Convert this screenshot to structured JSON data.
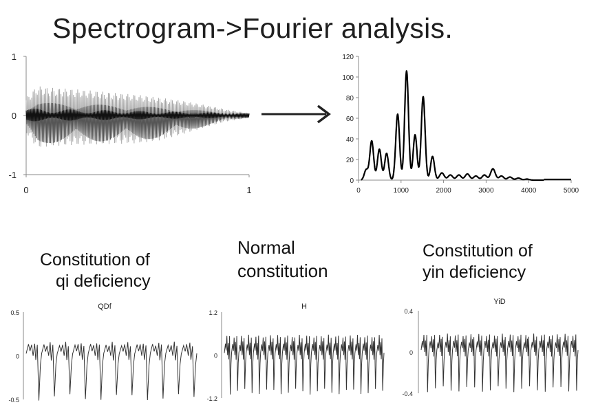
{
  "title": "Spectrogram->Fourier analysis.",
  "captions": {
    "qi_line1": "Constitution of",
    "qi_line2": "qi deficiency",
    "normal_line1": "Normal",
    "normal_line2": "constitution",
    "yin_line1": "Constitution of",
    "yin_line2": "yin deficiency"
  },
  "colors": {
    "line": "#000000",
    "light_wave": "#a6a6a6",
    "dark_wave": "#555555",
    "axis": "#888888"
  },
  "chart_data": [
    {
      "id": "waveform",
      "type": "area",
      "title": "",
      "x_ticks": [
        "0",
        "1"
      ],
      "y_ticks": [
        "1",
        "0",
        "-1"
      ],
      "xlim": [
        0,
        1
      ],
      "ylim": [
        -1,
        1
      ],
      "envelope": {
        "x": [
          0,
          0.05,
          0.1,
          0.2,
          0.3,
          0.4,
          0.5,
          0.6,
          0.7,
          0.8,
          0.9,
          1.0
        ],
        "upper": [
          0.3,
          0.5,
          0.47,
          0.45,
          0.42,
          0.38,
          0.35,
          0.3,
          0.25,
          0.18,
          0.1,
          0.04
        ],
        "lower": [
          -0.3,
          -0.55,
          -0.52,
          -0.5,
          -0.49,
          -0.48,
          -0.47,
          -0.42,
          -0.32,
          -0.2,
          -0.1,
          -0.04
        ]
      }
    },
    {
      "id": "spectrum",
      "type": "line",
      "title": "",
      "x_ticks": [
        "0",
        "1000",
        "2000",
        "3000",
        "4000",
        "5000"
      ],
      "y_ticks": [
        "0",
        "20",
        "40",
        "60",
        "80",
        "100",
        "120"
      ],
      "xlim": [
        0,
        5000
      ],
      "ylim": [
        0,
        120
      ],
      "peaks": [
        {
          "x": 120,
          "y": 10
        },
        {
          "x": 250,
          "y": 38
        },
        {
          "x": 430,
          "y": 30
        },
        {
          "x": 600,
          "y": 26
        },
        {
          "x": 860,
          "y": 64
        },
        {
          "x": 1070,
          "y": 106
        },
        {
          "x": 1270,
          "y": 44
        },
        {
          "x": 1460,
          "y": 81
        },
        {
          "x": 1680,
          "y": 23
        },
        {
          "x": 1900,
          "y": 7
        },
        {
          "x": 2100,
          "y": 5
        },
        {
          "x": 2300,
          "y": 5
        },
        {
          "x": 2500,
          "y": 6
        },
        {
          "x": 2700,
          "y": 4
        },
        {
          "x": 2900,
          "y": 5
        },
        {
          "x": 3100,
          "y": 11
        },
        {
          "x": 3300,
          "y": 4
        },
        {
          "x": 3500,
          "y": 3
        },
        {
          "x": 3700,
          "y": 2
        },
        {
          "x": 3900,
          "y": 1
        }
      ]
    },
    {
      "id": "qdf",
      "type": "line",
      "title": "QDf",
      "y_ticks": [
        "0.5",
        "0",
        "-0.5"
      ],
      "ylim": [
        -0.5,
        0.5
      ],
      "cycles": 11
    },
    {
      "id": "h",
      "type": "line",
      "title": "H",
      "y_ticks": [
        "1.2",
        "0",
        "-1.2"
      ],
      "ylim": [
        -1.2,
        1.2
      ],
      "cycles": 22
    },
    {
      "id": "yid",
      "type": "line",
      "title": "YiD",
      "y_ticks": [
        "0.4",
        "0",
        "-0.4"
      ],
      "ylim": [
        -0.4,
        0.4
      ],
      "cycles": 20
    }
  ]
}
